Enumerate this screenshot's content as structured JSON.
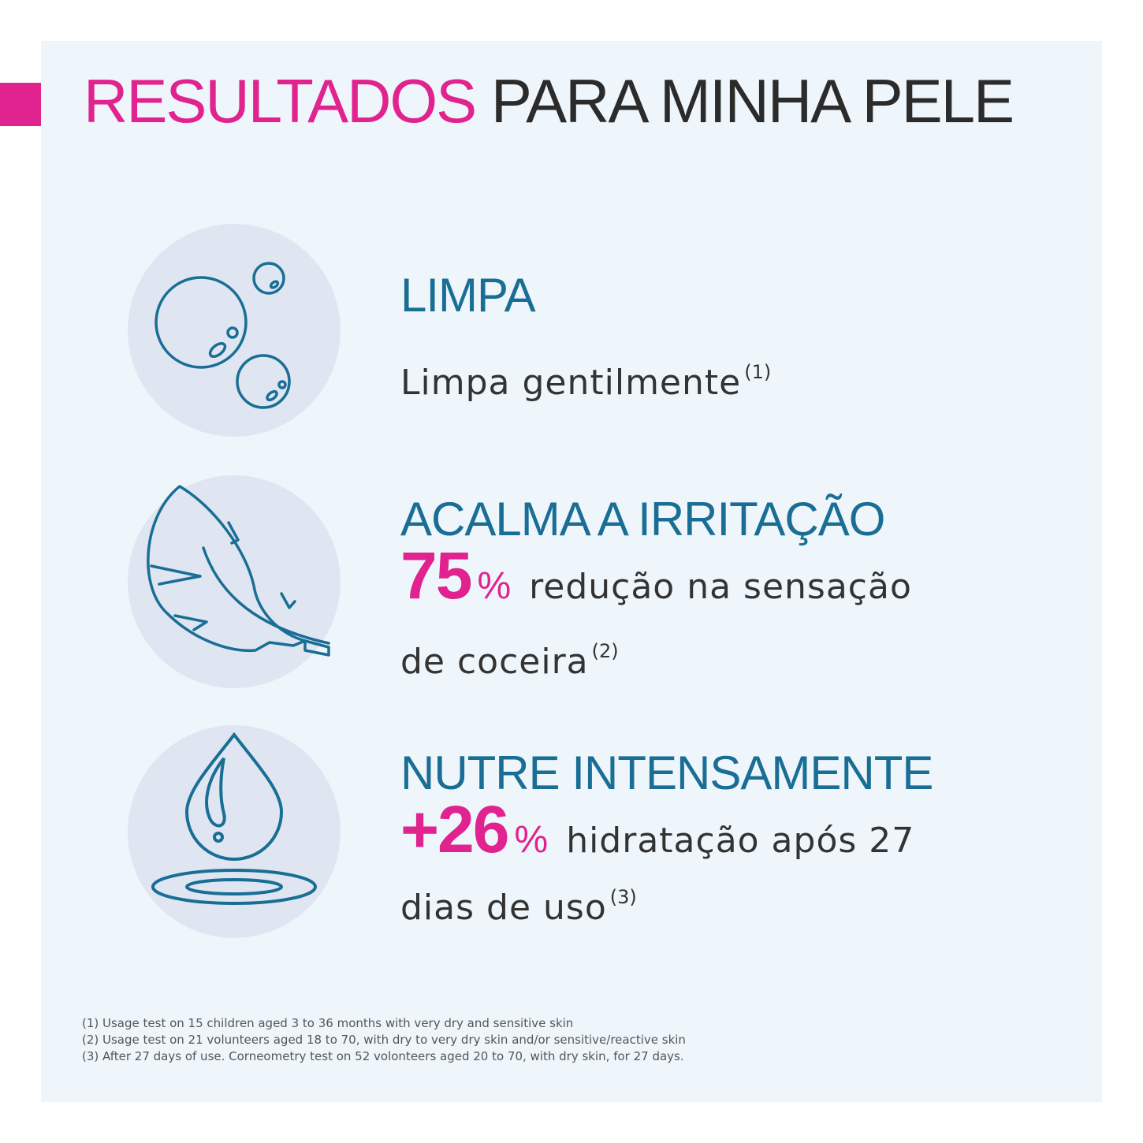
{
  "title": {
    "part1": "RESULTADOS",
    "part2": "PARA MINHA PELE"
  },
  "benefits": [
    {
      "icon": "bubbles-icon",
      "heading": "LIMPA",
      "text": "Limpa gentilmente",
      "ref": "(1)"
    },
    {
      "icon": "feather-icon",
      "heading": "ACALMA A IRRITAÇÃO",
      "stat": "75",
      "unit": "%",
      "text_line1": "redução na sensação",
      "text_line2": "de coceira",
      "ref": "(2)"
    },
    {
      "icon": "water-drop-icon",
      "heading": "NUTRE INTENSAMENTE",
      "stat": "+26",
      "unit": "%",
      "text_line1": "hidratação após 27",
      "text_line2": "dias de uso",
      "ref": "(3)"
    }
  ],
  "footnotes": [
    "(1) Usage test on 15 children aged 3 to 36 months with very dry and sensitive skin",
    "(2) Usage test on 21 volunteers aged 18 to 70, with dry to very dry skin and/or sensitive/reactive skin",
    "(3) After 27 days of use. Corneometry test on 52 volonteers aged 20 to 70, with dry skin, for 27 days."
  ],
  "colors": {
    "accent_pink": "#e0238f",
    "heading_blue": "#1a6e95",
    "icon_stroke": "#1a6e95",
    "panel_bg": "#eef6fb",
    "icon_circle_bg": "#dfe6f1"
  }
}
